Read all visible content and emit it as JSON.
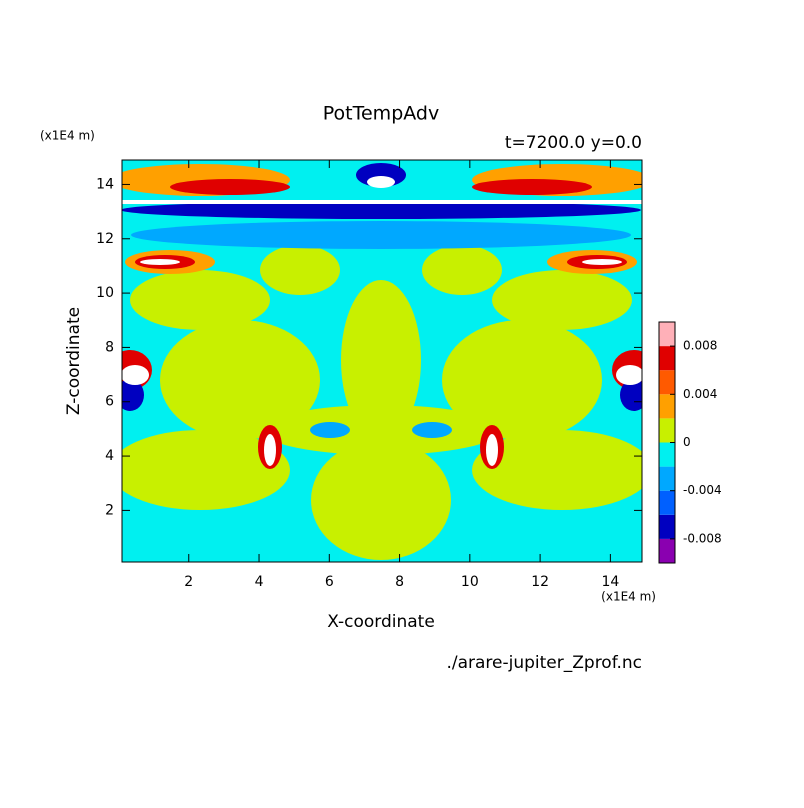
{
  "chart_data": {
    "type": "contour",
    "title": "PotTempAdv",
    "subtitle": "t=7200.0 y=0.0",
    "x_label": "X-coordinate",
    "y_label": "Z-coordinate",
    "x_unit": "(x1E4 m)",
    "y_unit": "(x1E4 m)",
    "source": "./arare-jupiter_Zprof.nc",
    "xlim": [
      0.1,
      14.9
    ],
    "ylim": [
      0.1,
      14.9
    ],
    "xticks": [
      2,
      4,
      6,
      8,
      10,
      12,
      14
    ],
    "yticks": [
      2,
      4,
      6,
      8,
      10,
      12,
      14
    ],
    "levels": [
      -0.01,
      -0.008,
      -0.006,
      -0.004,
      -0.002,
      0,
      0.002,
      0.004,
      0.006,
      0.008,
      0.01
    ],
    "colors": [
      "#8a00b0",
      "#0000c0",
      "#0060ff",
      "#00a8ff",
      "#00f0f0",
      "#c8f000",
      "#ffa000",
      "#ff5a00",
      "#e00000",
      "#ffb0b8"
    ],
    "cticks": [
      -0.008,
      -0.004,
      0,
      0.004,
      0.008
    ]
  }
}
